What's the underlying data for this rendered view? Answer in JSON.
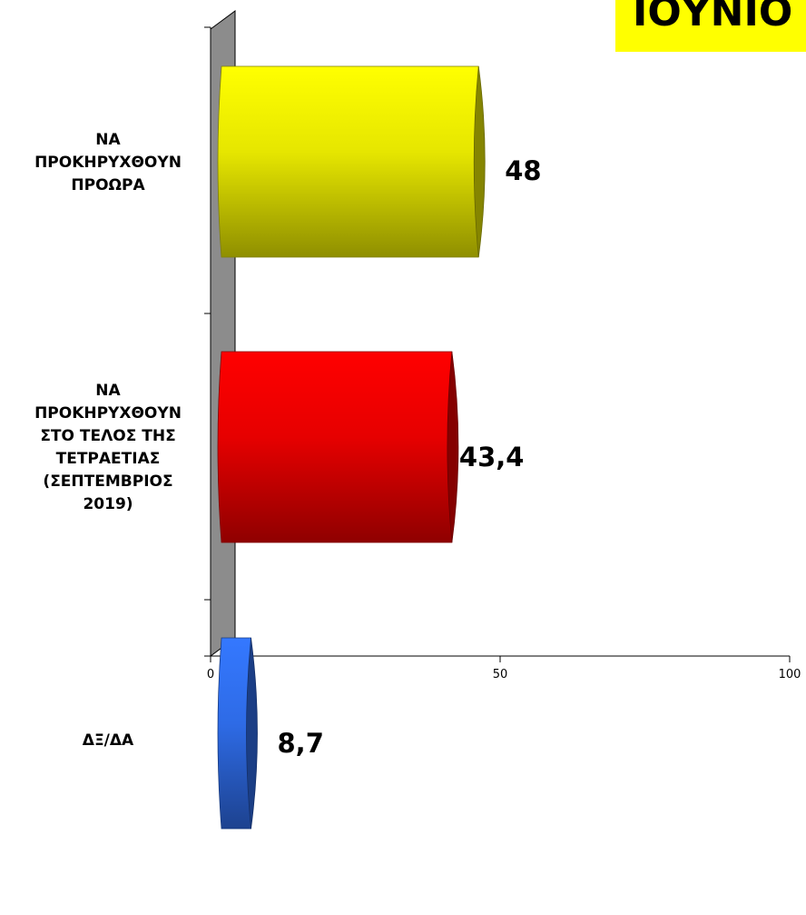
{
  "badge": {
    "text": "ΙΟΥΝΙΟ"
  },
  "chart_data": {
    "type": "bar",
    "orientation": "horizontal",
    "categories": [
      "ΝΑ\nΠΡΟΚΗΡΥΧΘΟΥΝ\nΠΡΟΩΡΑ",
      "ΝΑ\nΠΡΟΚΗΡΥΧΘΟΥΝ\nΣΤΟ ΤΕΛΟΣ ΤΗΣ\nΤΕΤΡΑΕΤΙΑΣ\n(ΣΕΠΤΕΜΒΡΙΟΣ\n2019)",
      "ΔΞ/ΔΑ"
    ],
    "values": [
      48,
      43.4,
      8.7
    ],
    "value_labels": [
      "48",
      "43,4",
      "8,7"
    ],
    "colors": [
      "#e6e600",
      "#e60000",
      "#2e6be6"
    ],
    "xlim": [
      0,
      100
    ],
    "xticks": [
      "0",
      "50",
      "100"
    ],
    "grid": false,
    "legend": "none"
  }
}
